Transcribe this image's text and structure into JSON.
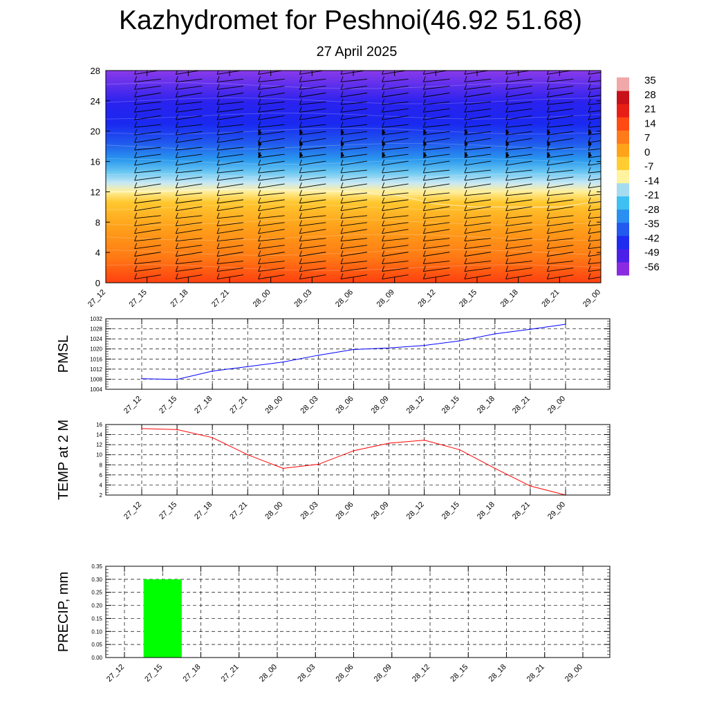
{
  "title": "Kazhydromet for Peshnoi(46.92 51.68)",
  "subtitle": "27 April 2025",
  "colors": {
    "pmsl_line": "#0000ff",
    "temp_line": "#ff0000",
    "precip_bar": "#00ff00",
    "colormap": [
      "#8a2be2",
      "#4b20e8",
      "#1f2cf0",
      "#2259ee",
      "#2a8ff0",
      "#3ec0f2",
      "#a6dcf0",
      "#fff3a0",
      "#ffcc33",
      "#ffa31a",
      "#ff7a1a",
      "#ff4a14",
      "#e81e14",
      "#c81018",
      "#f0a8a8"
    ]
  },
  "chart_data": [
    {
      "type": "heatmap",
      "title": "",
      "xlabel": "",
      "ylabel": "",
      "x_ticks": [
        "27_12",
        "27_15",
        "27_18",
        "27_21",
        "28_00",
        "28_03",
        "28_06",
        "28_09",
        "28_12",
        "28_15",
        "28_18",
        "28_21",
        "29_00"
      ],
      "y_ticks": [
        0,
        4,
        8,
        12,
        16,
        20,
        24,
        28
      ],
      "ylim": [
        0,
        28
      ],
      "colorbar_labels": [
        35,
        28,
        21,
        14,
        7,
        0,
        -7,
        -14,
        -21,
        -28,
        -35,
        -42,
        -49,
        -56
      ],
      "freezing_level": [
        12,
        12,
        12.2,
        12.3,
        12.3,
        12.2,
        12,
        11.6,
        10.4,
        10,
        10,
        10,
        10.8
      ],
      "wind_barbs": true
    },
    {
      "type": "line",
      "ylabel": "PMSL",
      "x": [
        "27_12",
        "27_15",
        "27_18",
        "27_21",
        "28_00",
        "28_03",
        "28_06",
        "28_09",
        "28_12",
        "28_15",
        "28_18",
        "28_21",
        "29_00"
      ],
      "values": [
        1008.2,
        1007.9,
        1011.2,
        1013.0,
        1014.8,
        1017.5,
        1019.8,
        1020.4,
        1021.4,
        1023.2,
        1026.0,
        1027.8,
        1029.8
      ],
      "ylim": [
        1004,
        1032
      ],
      "y_ticks": [
        1004,
        1008,
        1012,
        1016,
        1020,
        1024,
        1028,
        1032
      ],
      "grid": true
    },
    {
      "type": "line",
      "ylabel": "TEMP at 2 M",
      "x": [
        "27_12",
        "27_15",
        "27_18",
        "27_21",
        "28_00",
        "28_03",
        "28_06",
        "28_09",
        "28_12",
        "28_15",
        "28_18",
        "28_21",
        "29_00"
      ],
      "values": [
        15.2,
        15.0,
        13.4,
        10.0,
        7.3,
        8.1,
        10.8,
        12.3,
        12.9,
        11.0,
        7.3,
        3.8,
        2.0
      ],
      "ylim": [
        2,
        16
      ],
      "y_ticks": [
        2,
        4,
        6,
        8,
        10,
        12,
        14,
        16
      ],
      "grid": true
    },
    {
      "type": "bar",
      "ylabel": "PRECIP, mm",
      "categories": [
        "27_12",
        "27_15",
        "27_18",
        "27_21",
        "28_00",
        "28_03",
        "28_06",
        "28_09",
        "28_12",
        "28_15",
        "28_18",
        "28_21",
        "29_00"
      ],
      "values": [
        0,
        0.3,
        0,
        0,
        0,
        0,
        0,
        0,
        0,
        0,
        0,
        0,
        0
      ],
      "ylim": [
        0,
        0.35
      ],
      "y_ticks": [
        "0.00",
        "0.05",
        "0.10",
        "0.15",
        "0.20",
        "0.25",
        "0.30",
        "0.35"
      ],
      "grid": true
    }
  ]
}
